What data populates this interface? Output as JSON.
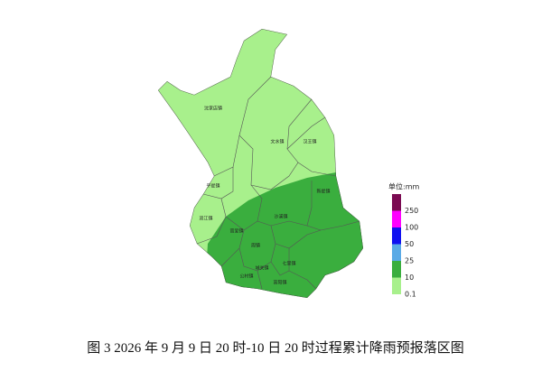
{
  "map": {
    "towns": [
      "沈家店镇",
      "文水镇",
      "汉王镇",
      "平星镇",
      "双江镇",
      "新星镇",
      "沙溪镇",
      "官爱镇",
      "周镇",
      "城关镇",
      "七里镇",
      "公村镇",
      "高阳镇"
    ]
  },
  "legend": {
    "title": "单位:mm",
    "items": [
      {
        "label": "250",
        "color": "#7b0a52"
      },
      {
        "label": "100",
        "color": "#ff00ff"
      },
      {
        "label": "50",
        "color": "#1010f0"
      },
      {
        "label": "25",
        "color": "#5aaae6"
      },
      {
        "label": "10",
        "color": "#3aae3e"
      },
      {
        "label": "0.1",
        "color": "#a8f08c"
      }
    ]
  },
  "caption": "图 3 2026 年 9 月 9 日 20 时-10 日 20 时过程累计降雨预报落区图"
}
